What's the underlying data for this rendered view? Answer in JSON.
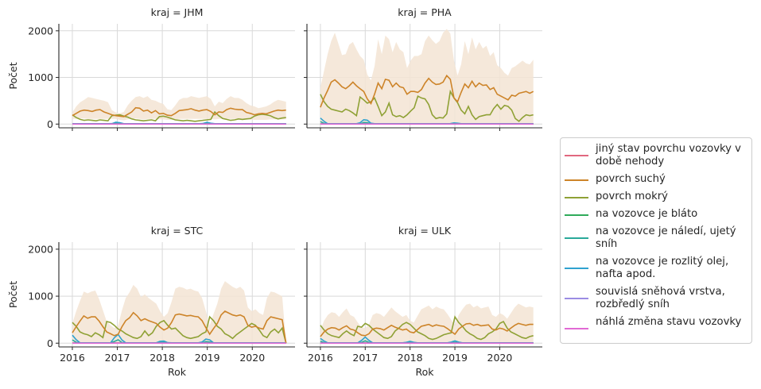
{
  "chart_data": {
    "type": "line",
    "facet_variable": "kraj",
    "facets": [
      {
        "title": "kraj = JHM",
        "series_means": {
          "povrch suchý": [
            180,
            230,
            280,
            300,
            290,
            270,
            300,
            310,
            260,
            230,
            200,
            180,
            170,
            160,
            210,
            260,
            350,
            340,
            280,
            300,
            240,
            290,
            220,
            230,
            190,
            180,
            230,
            290,
            300,
            310,
            330,
            300,
            280,
            300,
            310,
            270,
            200,
            260,
            250,
            310,
            340,
            320,
            310,
            310,
            250,
            230,
            200,
            220,
            230,
            220,
            250,
            280,
            300,
            290,
            300
          ]
        },
        "band": {
          "upper": [
            250,
            380,
            470,
            520,
            580,
            560,
            540,
            520,
            500,
            470,
            300,
            250,
            230,
            260,
            400,
            500,
            580,
            600,
            560,
            600,
            520,
            500,
            460,
            430,
            320,
            300,
            400,
            520,
            560,
            560,
            600,
            580,
            560,
            580,
            600,
            540,
            380,
            480,
            450,
            540,
            600,
            560,
            560,
            520,
            450,
            400,
            380,
            340,
            360,
            380,
            420,
            480,
            520,
            500,
            480
          ],
          "lower": [
            110,
            110,
            120,
            120,
            110,
            110,
            110,
            110,
            110,
            110,
            110,
            110,
            90,
            80,
            100,
            110,
            120,
            110,
            100,
            110,
            110,
            110,
            100,
            100,
            90,
            90,
            100,
            110,
            110,
            110,
            110,
            110,
            110,
            110,
            110,
            110,
            100,
            110,
            110,
            110,
            110,
            110,
            110,
            110,
            110,
            100,
            90,
            90,
            90,
            90,
            100,
            100,
            100,
            100,
            100
          ]
        }
      },
      {
        "title": "kraj = PHA",
        "series_means": {
          "povrch suchý": [
            360,
            560,
            720,
            900,
            950,
            880,
            800,
            760,
            820,
            900,
            820,
            760,
            700,
            540,
            440,
            640,
            880,
            760,
            960,
            940,
            800,
            880,
            800,
            780,
            640,
            700,
            700,
            680,
            740,
            880,
            980,
            900,
            850,
            860,
            900,
            1040,
            960,
            560,
            480,
            680,
            860,
            780,
            920,
            800,
            880,
            830,
            840,
            740,
            780,
            640,
            600,
            560,
            520,
            620,
            600,
            660,
            680,
            700,
            660,
            700
          ]
        },
        "band": {
          "upper": [
            780,
            1140,
            1500,
            1780,
            1960,
            1720,
            1480,
            1500,
            1700,
            1760,
            1600,
            1460,
            1380,
            1060,
            940,
            1240,
            1820,
            1500,
            1900,
            1820,
            1540,
            1760,
            1600,
            1540,
            1200,
            1360,
            1460,
            1460,
            1500,
            1780,
            1900,
            1800,
            1720,
            1780,
            1960,
            2040,
            1940,
            1360,
            1040,
            1280,
            1780,
            1500,
            1860,
            1600,
            1760,
            1620,
            1680,
            1460,
            1540,
            1260,
            1200,
            1100,
            1040,
            1200,
            1240,
            1300,
            1360,
            1300,
            1280,
            1380
          ],
          "lower": [
            0,
            0,
            0,
            0,
            0,
            0,
            0,
            0,
            0,
            0,
            0,
            0,
            0,
            0,
            0,
            0,
            0,
            0,
            0,
            0,
            0,
            0,
            0,
            0,
            0,
            0,
            0,
            0,
            0,
            0,
            0,
            0,
            0,
            0,
            0,
            0,
            0,
            0,
            0,
            0,
            0,
            0,
            0,
            0,
            0,
            0,
            0,
            0,
            0,
            0,
            0,
            0,
            0,
            0,
            0,
            0,
            0,
            0,
            0,
            0
          ]
        }
      },
      {
        "title": "kraj = STC",
        "series_means": {
          "povrch suchý": [
            220,
            350,
            470,
            580,
            530,
            560,
            560,
            470,
            350,
            240,
            200,
            160,
            190,
            350,
            480,
            540,
            650,
            580,
            480,
            520,
            480,
            450,
            420,
            340,
            280,
            320,
            440,
            600,
            620,
            600,
            580,
            590,
            570,
            560,
            480,
            330,
            190,
            310,
            420,
            600,
            680,
            640,
            600,
            580,
            600,
            560,
            380,
            340,
            360,
            320,
            300,
            480,
            560,
            540,
            520,
            500,
            0
          ]
        },
        "band": {
          "upper": [
            420,
            680,
            900,
            1100,
            1060,
            1100,
            1120,
            940,
            700,
            460,
            380,
            320,
            380,
            700,
            960,
            1080,
            1240,
            1160,
            980,
            1040,
            960,
            900,
            840,
            680,
            560,
            640,
            880,
            1160,
            1200,
            1180,
            1140,
            1160,
            1120,
            1100,
            960,
            680,
            380,
            620,
            840,
            1160,
            1320,
            1260,
            1200,
            1160,
            1200,
            1120,
            760,
            680,
            720,
            640,
            600,
            960,
            1100,
            1080,
            1040,
            1000,
            0
          ],
          "lower": [
            0,
            0,
            0,
            0,
            0,
            0,
            0,
            0,
            0,
            0,
            0,
            0,
            0,
            0,
            0,
            0,
            0,
            0,
            0,
            0,
            0,
            0,
            0,
            0,
            0,
            0,
            0,
            0,
            0,
            0,
            0,
            0,
            0,
            0,
            0,
            0,
            0,
            0,
            0,
            0,
            0,
            0,
            0,
            0,
            0,
            0,
            0,
            0,
            0,
            0,
            0,
            0,
            0,
            0,
            0,
            0,
            0
          ]
        }
      },
      {
        "title": "kraj = ULK",
        "series_means": {
          "povrch suchý": [
            140,
            240,
            300,
            330,
            320,
            280,
            330,
            370,
            300,
            280,
            220,
            170,
            160,
            200,
            300,
            320,
            310,
            280,
            330,
            380,
            340,
            310,
            280,
            300,
            240,
            220,
            290,
            360,
            380,
            400,
            360,
            390,
            370,
            360,
            310,
            250,
            190,
            300,
            360,
            410,
            420,
            380,
            400,
            370,
            380,
            390,
            300,
            280,
            320,
            300,
            260,
            320,
            380,
            420,
            400,
            380,
            400,
            400
          ]
        },
        "band": {
          "upper": [
            280,
            480,
            600,
            660,
            640,
            560,
            660,
            740,
            600,
            560,
            440,
            340,
            320,
            400,
            600,
            640,
            620,
            560,
            660,
            760,
            680,
            620,
            560,
            600,
            480,
            440,
            580,
            720,
            760,
            800,
            720,
            780,
            740,
            720,
            620,
            500,
            380,
            600,
            720,
            820,
            840,
            760,
            800,
            740,
            760,
            780,
            600,
            560,
            640,
            600,
            520,
            640,
            760,
            840,
            800,
            760,
            780,
            760
          ],
          "lower": [
            0,
            0,
            0,
            0,
            0,
            0,
            0,
            0,
            0,
            0,
            0,
            0,
            0,
            0,
            0,
            0,
            0,
            0,
            0,
            0,
            0,
            0,
            0,
            0,
            0,
            0,
            0,
            0,
            0,
            0,
            0,
            0,
            0,
            0,
            0,
            0,
            0,
            0,
            0,
            0,
            0,
            0,
            0,
            0,
            0,
            0,
            0,
            0,
            0,
            0,
            0,
            0,
            0,
            0,
            0,
            0,
            0,
            0
          ]
        }
      }
    ],
    "series": [
      {
        "name": "jiný stav povrchu vozovky v době nehody",
        "color": "#e1687f"
      },
      {
        "name": "povrch suchý",
        "color": "#cd8429"
      },
      {
        "name": "povrch mokrý",
        "color": "#8fa135"
      },
      {
        "name": "na vozovce je bláto",
        "color": "#2fab5a"
      },
      {
        "name": "na vozovce je náledí, ujetý sníh",
        "color": "#2aa99a"
      },
      {
        "name": "na vozovce je rozlitý olej, nafta apod.",
        "color": "#2fa2d0"
      },
      {
        "name": "souvislá sněhová vrstva, rozbředlý sníh",
        "color": "#9b8ce4"
      },
      {
        "name": "náhlá změna stavu vozovky",
        "color": "#e16ad4"
      }
    ],
    "mokry": {
      "JHM": [
        200,
        140,
        100,
        80,
        90,
        80,
        70,
        90,
        80,
        70,
        180,
        190,
        200,
        170,
        150,
        110,
        90,
        80,
        70,
        80,
        90,
        70,
        160,
        170,
        150,
        120,
        90,
        80,
        70,
        80,
        70,
        60,
        70,
        80,
        90,
        100,
        260,
        180,
        120,
        100,
        80,
        90,
        110,
        100,
        110,
        120,
        170,
        200,
        210,
        200,
        180,
        140,
        110,
        130,
        140
      ],
      "PHA": [
        640,
        480,
        380,
        320,
        300,
        280,
        260,
        320,
        290,
        240,
        180,
        580,
        520,
        450,
        480,
        560,
        380,
        180,
        260,
        450,
        200,
        160,
        180,
        140,
        200,
        280,
        350,
        600,
        560,
        540,
        420,
        200,
        120,
        140,
        130,
        220,
        700,
        560,
        460,
        300,
        220,
        380,
        200,
        100,
        160,
        180,
        200,
        200,
        330,
        420,
        320,
        400,
        380,
        300,
        120,
        60,
        140,
        200,
        180,
        200
      ],
      "STC": [
        440,
        360,
        240,
        200,
        180,
        140,
        220,
        180,
        120,
        460,
        440,
        380,
        300,
        260,
        200,
        160,
        120,
        100,
        140,
        260,
        160,
        220,
        360,
        440,
        480,
        380,
        300,
        320,
        240,
        160,
        120,
        100,
        120,
        140,
        200,
        240,
        560,
        480,
        360,
        300,
        200,
        160,
        100,
        180,
        240,
        300,
        360,
        420,
        380,
        280,
        160,
        120,
        240,
        300,
        220,
        320,
        0
      ],
      "ULK": [
        380,
        280,
        200,
        160,
        140,
        120,
        200,
        260,
        200,
        160,
        360,
        340,
        420,
        380,
        300,
        240,
        180,
        120,
        100,
        140,
        260,
        320,
        400,
        440,
        400,
        320,
        240,
        200,
        160,
        100,
        80,
        100,
        140,
        180,
        200,
        220,
        560,
        440,
        360,
        260,
        200,
        160,
        100,
        80,
        120,
        200,
        240,
        300,
        420,
        460,
        320,
        240,
        200,
        160,
        120,
        100,
        140,
        160
      ]
    },
    "olej_peaks": {
      "JHM": [
        [
          2017.0,
          50
        ],
        [
          2019.0,
          40
        ]
      ],
      "PHA": [
        [
          2016.0,
          130
        ],
        [
          2017.0,
          120
        ],
        [
          2019.0,
          30
        ]
      ],
      "STC": [
        [
          2016.0,
          170
        ],
        [
          2017.0,
          210
        ],
        [
          2018.0,
          60
        ],
        [
          2019.0,
          110
        ]
      ],
      "ULK": [
        [
          2016.0,
          100
        ],
        [
          2017.0,
          130
        ],
        [
          2018.0,
          40
        ],
        [
          2019.0,
          50
        ]
      ]
    },
    "x_range": [
      2015.7,
      2020.95
    ],
    "y_range": [
      -80,
      2150
    ],
    "x_ticks": [
      "2016",
      "2017",
      "2018",
      "2019",
      "2020"
    ],
    "y_ticks": [
      "0",
      "1000",
      "2000"
    ],
    "xlabel": "Rok",
    "ylabel": "Počet",
    "legend_position": "right",
    "band_color": "#f3e4d3"
  }
}
